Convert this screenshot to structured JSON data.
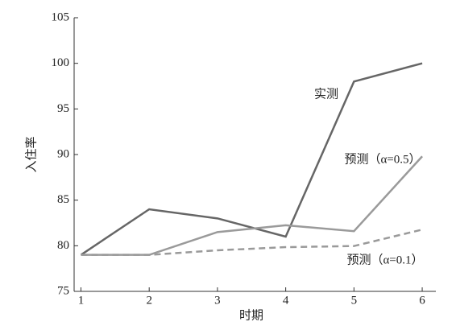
{
  "chart_data": {
    "type": "line",
    "x_label": "时期",
    "y_label": "入住率",
    "x": [
      1,
      2,
      3,
      4,
      5,
      6
    ],
    "series": [
      {
        "name": "实测",
        "color": "#666666",
        "dashed": false,
        "values": [
          79,
          84,
          83,
          81,
          98,
          100
        ]
      },
      {
        "name": "预测（α=0.5）",
        "color": "#9a9a9a",
        "dashed": false,
        "values": [
          79,
          79,
          81.5,
          82.25,
          81.6,
          89.8
        ]
      },
      {
        "name": "预测（α=0.1）",
        "color": "#9a9a9a",
        "dashed": true,
        "values": [
          79,
          79,
          79.5,
          79.85,
          79.97,
          81.77
        ]
      }
    ],
    "xlim": [
      0.9,
      6.2
    ],
    "xticks": [
      1,
      2,
      3,
      4,
      5,
      6
    ],
    "ylim": [
      75,
      105
    ],
    "yticks": [
      75,
      80,
      85,
      90,
      95,
      100,
      105
    ],
    "grid": false
  }
}
